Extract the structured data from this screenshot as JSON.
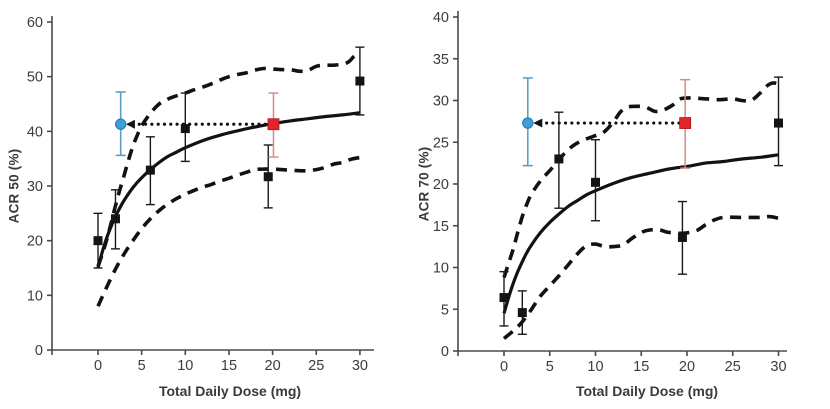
{
  "colors": {
    "curve_black": "#121212",
    "marker_black": "#141414",
    "axis": "#4a4a4a",
    "tick_text": "#3c3c3c",
    "blue_marker": "#3d9fd6",
    "blue_marker_edge": "#1f7ab3",
    "blue_error": "#5d9ec7",
    "red_marker": "#e2242b",
    "red_marker_edge": "#b0161c",
    "red_error": "#d98a86",
    "arrow": "#121212"
  },
  "chart_data": [
    {
      "type": "line",
      "panel": "ACR50",
      "ylabel": "ACR 50 (%)",
      "xlabel": "Total Daily Dose (mg)",
      "xlim": [
        0,
        30
      ],
      "ylim": [
        0,
        60
      ],
      "xticks": [
        0,
        5,
        10,
        15,
        20,
        25,
        30
      ],
      "yticks": [
        0,
        10,
        20,
        30,
        40,
        50,
        60
      ],
      "grid": false,
      "legend": "none",
      "observed_points": [
        {
          "x": 0,
          "y": 20,
          "lo": 15,
          "hi": 25
        },
        {
          "x": 2,
          "y": 24,
          "lo": 18.5,
          "hi": 29.3
        },
        {
          "x": 6,
          "y": 32.9,
          "lo": 26.6,
          "hi": 39
        },
        {
          "x": 10,
          "y": 40.5,
          "lo": 34.5,
          "hi": 47
        },
        {
          "x": 19.5,
          "y": 31.7,
          "lo": 26,
          "hi": 37.5
        },
        {
          "x": 30,
          "y": 49.2,
          "lo": 43,
          "hi": 55.4
        }
      ],
      "model_curve": [
        [
          0,
          15
        ],
        [
          0.5,
          18
        ],
        [
          1,
          20.5
        ],
        [
          1.5,
          22.6
        ],
        [
          2,
          24.4
        ],
        [
          2.5,
          26
        ],
        [
          3,
          27.4
        ],
        [
          4,
          29.7
        ],
        [
          5,
          31.5
        ],
        [
          6,
          33
        ],
        [
          7,
          34.3
        ],
        [
          8,
          35.4
        ],
        [
          9,
          36.2
        ],
        [
          10,
          37
        ],
        [
          12,
          38.3
        ],
        [
          14,
          39.3
        ],
        [
          16,
          40.1
        ],
        [
          18,
          40.8
        ],
        [
          20,
          41.4
        ],
        [
          22,
          41.9
        ],
        [
          24,
          42.3
        ],
        [
          26,
          42.7
        ],
        [
          28,
          43
        ],
        [
          30,
          43.4
        ]
      ],
      "ci_upper": [
        [
          0,
          15.3
        ],
        [
          0.5,
          17.6
        ],
        [
          1,
          20.2
        ],
        [
          1.5,
          23.2
        ],
        [
          2,
          26.4
        ],
        [
          2.5,
          29.3
        ],
        [
          3,
          32
        ],
        [
          3.5,
          34.8
        ],
        [
          4,
          37.3
        ],
        [
          4.5,
          39.3
        ],
        [
          5,
          41
        ],
        [
          6,
          43.3
        ],
        [
          7,
          45
        ],
        [
          8,
          45.9
        ],
        [
          9,
          46.5
        ],
        [
          10,
          47
        ],
        [
          11,
          47.6
        ],
        [
          12,
          48.1
        ],
        [
          13,
          48.7
        ],
        [
          14,
          49.4
        ],
        [
          15,
          50
        ],
        [
          16,
          50.4
        ],
        [
          17,
          50.7
        ],
        [
          18,
          51.2
        ],
        [
          19,
          51.5
        ],
        [
          20,
          51.4
        ],
        [
          21,
          51.3
        ],
        [
          22,
          51.3
        ],
        [
          23,
          51
        ],
        [
          24,
          51.1
        ],
        [
          25,
          51.9
        ],
        [
          26,
          52.1
        ],
        [
          27,
          52.1
        ],
        [
          28,
          52.3
        ],
        [
          28.7,
          52.7
        ],
        [
          29.4,
          53.8
        ],
        [
          30,
          54
        ]
      ],
      "ci_lower": [
        [
          0,
          8
        ],
        [
          1,
          11.5
        ],
        [
          2,
          14.8
        ],
        [
          3,
          17.6
        ],
        [
          4,
          20
        ],
        [
          5,
          22.2
        ],
        [
          6,
          24
        ],
        [
          7,
          25.5
        ],
        [
          8,
          26.7
        ],
        [
          9,
          27.7
        ],
        [
          10,
          28.5
        ],
        [
          11,
          29.2
        ],
        [
          12,
          29.8
        ],
        [
          13,
          30.3
        ],
        [
          14,
          30.9
        ],
        [
          15,
          31.4
        ],
        [
          16,
          32
        ],
        [
          17,
          32.5
        ],
        [
          18,
          33
        ],
        [
          19,
          33.1
        ],
        [
          20,
          33.1
        ],
        [
          21,
          33
        ],
        [
          22,
          32.9
        ],
        [
          23,
          32.8
        ],
        [
          24,
          32.8
        ],
        [
          25,
          33
        ],
        [
          26,
          33.4
        ],
        [
          27,
          34
        ],
        [
          28,
          34.3
        ],
        [
          29,
          34.9
        ],
        [
          30,
          35.2
        ]
      ],
      "reference_markers": {
        "blue_circle": {
          "x": 2.6,
          "y": 41.3,
          "lo": 35.6,
          "hi": 47.2
        },
        "red_square": {
          "x": 20.1,
          "y": 41.3,
          "lo": 35.3,
          "hi": 47
        }
      },
      "dose_equivalence_arrow": {
        "y": 41.3,
        "x_from": 20.1,
        "x_to": 3.2,
        "direction": "left"
      }
    },
    {
      "type": "line",
      "panel": "ACR70",
      "ylabel": "ACR 70 (%)",
      "xlabel": "Total Daily Dose (mg)",
      "xlim": [
        0,
        30
      ],
      "ylim": [
        0,
        40
      ],
      "xticks": [
        0,
        5,
        10,
        15,
        20,
        25,
        30
      ],
      "yticks": [
        0,
        5,
        10,
        15,
        20,
        25,
        30,
        35,
        40
      ],
      "grid": false,
      "legend": "none",
      "observed_points": [
        {
          "x": 0,
          "y": 6.4,
          "lo": 3,
          "hi": 9.5
        },
        {
          "x": 2,
          "y": 4.6,
          "lo": 2,
          "hi": 7.2
        },
        {
          "x": 6,
          "y": 23,
          "lo": 17.1,
          "hi": 28.6
        },
        {
          "x": 10,
          "y": 20.2,
          "lo": 15.6,
          "hi": 25.3
        },
        {
          "x": 19.5,
          "y": 13.6,
          "lo": 9.2,
          "hi": 17.9
        },
        {
          "x": 30,
          "y": 27.3,
          "lo": 22.2,
          "hi": 32.8
        }
      ],
      "model_curve": [
        [
          0,
          4.5
        ],
        [
          0.5,
          6.4
        ],
        [
          1,
          8.1
        ],
        [
          1.5,
          9.5
        ],
        [
          2,
          10.7
        ],
        [
          2.5,
          11.8
        ],
        [
          3,
          12.7
        ],
        [
          4,
          14.2
        ],
        [
          5,
          15.4
        ],
        [
          6,
          16.4
        ],
        [
          7,
          17.3
        ],
        [
          8,
          18
        ],
        [
          9,
          18.7
        ],
        [
          10,
          19.2
        ],
        [
          12,
          20.1
        ],
        [
          14,
          20.8
        ],
        [
          16,
          21.3
        ],
        [
          18,
          21.8
        ],
        [
          20,
          22.1
        ],
        [
          22,
          22.5
        ],
        [
          24,
          22.7
        ],
        [
          26,
          23
        ],
        [
          28,
          23.2
        ],
        [
          30,
          23.5
        ]
      ],
      "ci_upper": [
        [
          0,
          8.8
        ],
        [
          0.5,
          10.5
        ],
        [
          1,
          12.2
        ],
        [
          1.5,
          14.2
        ],
        [
          2,
          16.1
        ],
        [
          2.5,
          17.6
        ],
        [
          3,
          18.8
        ],
        [
          4,
          20.4
        ],
        [
          5,
          21.6
        ],
        [
          6,
          22.9
        ],
        [
          7,
          24.1
        ],
        [
          8,
          24.9
        ],
        [
          9,
          25.4
        ],
        [
          10,
          25.8
        ],
        [
          11,
          26.3
        ],
        [
          12,
          27.5
        ],
        [
          12.7,
          28.6
        ],
        [
          13.5,
          29.2
        ],
        [
          14.5,
          29.3
        ],
        [
          15.5,
          29.2
        ],
        [
          16.5,
          28.7
        ],
        [
          17.5,
          28.9
        ],
        [
          18.5,
          29.5
        ],
        [
          19.3,
          30.2
        ],
        [
          20.5,
          30.3
        ],
        [
          22,
          30.2
        ],
        [
          23.5,
          30.1
        ],
        [
          25,
          30.2
        ],
        [
          26,
          30
        ],
        [
          27,
          30
        ],
        [
          28,
          30.9
        ],
        [
          28.8,
          31.8
        ],
        [
          29.4,
          32.1
        ],
        [
          30,
          32
        ]
      ],
      "ci_lower": [
        [
          0,
          1.5
        ],
        [
          1,
          2.4
        ],
        [
          2,
          3.5
        ],
        [
          3,
          5
        ],
        [
          4,
          6.6
        ],
        [
          5,
          7.8
        ],
        [
          6,
          9
        ],
        [
          7,
          10.3
        ],
        [
          8,
          11.6
        ],
        [
          9,
          12.6
        ],
        [
          10,
          12.8
        ],
        [
          11,
          12.5
        ],
        [
          12,
          12.5
        ],
        [
          13,
          12.7
        ],
        [
          14,
          13.5
        ],
        [
          15,
          14.2
        ],
        [
          16,
          14.5
        ],
        [
          17,
          14.5
        ],
        [
          18,
          14.2
        ],
        [
          19.5,
          14.1
        ],
        [
          21,
          14.4
        ],
        [
          22,
          15.1
        ],
        [
          23,
          15.7
        ],
        [
          24,
          16
        ],
        [
          26,
          16
        ],
        [
          28,
          16
        ],
        [
          29,
          16.1
        ],
        [
          30,
          15.9
        ]
      ],
      "reference_markers": {
        "blue_circle": {
          "x": 2.6,
          "y": 27.3,
          "lo": 22.2,
          "hi": 32.7
        },
        "red_square": {
          "x": 19.8,
          "y": 27.3,
          "lo": 21.9,
          "hi": 32.5
        }
      },
      "dose_equivalence_arrow": {
        "y": 27.3,
        "x_from": 19.8,
        "x_to": 3.2,
        "direction": "left"
      }
    }
  ]
}
